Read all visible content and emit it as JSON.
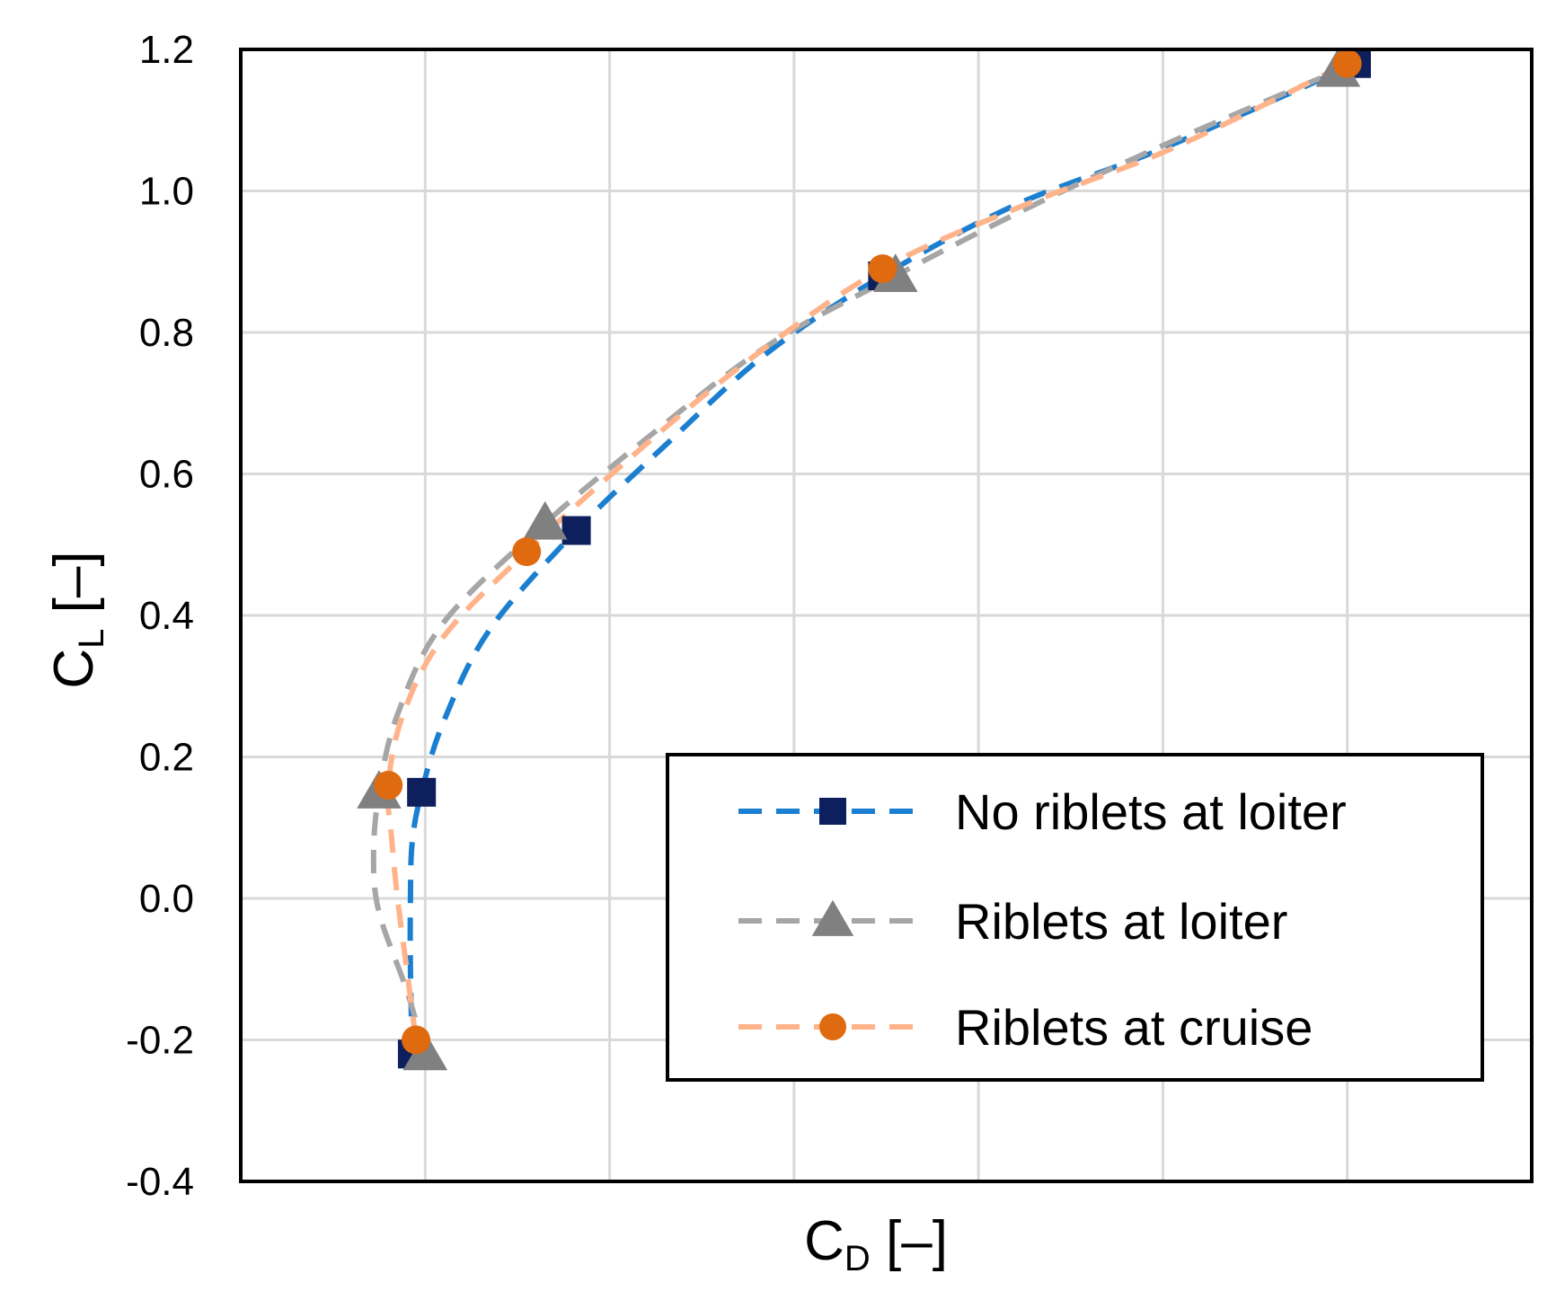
{
  "chart_data": {
    "type": "line",
    "title": "",
    "xlabel": {
      "main": "C",
      "sub": "D",
      "unit": "[–]"
    },
    "ylabel": {
      "main": "C",
      "sub": "L",
      "unit": "[–]"
    },
    "xlim": [
      0,
      7
    ],
    "ylim": [
      -0.4,
      1.2
    ],
    "yticks": [
      "1.2",
      "1.0",
      "0.8",
      "0.6",
      "0.4",
      "0.2",
      "0.0",
      "-0.2",
      "-0.4"
    ],
    "x_tick_labels_shown": false,
    "grid": true,
    "legend_position": "bottom-right",
    "series": [
      {
        "name": "No riblets at loiter",
        "marker": "square",
        "line_color": "#1a7fd1",
        "marker_color": "#0d1f5c",
        "points": [
          [
            0.93,
            -0.22
          ],
          [
            0.98,
            0.15
          ],
          [
            1.82,
            0.52
          ],
          [
            3.48,
            0.88
          ],
          [
            6.05,
            1.18
          ]
        ],
        "curve": [
          [
            0.93,
            -0.22
          ],
          [
            0.92,
            -0.1
          ],
          [
            0.92,
            0.0
          ],
          [
            0.93,
            0.08
          ],
          [
            0.98,
            0.15
          ],
          [
            1.1,
            0.25
          ],
          [
            1.35,
            0.38
          ],
          [
            1.82,
            0.52
          ],
          [
            2.3,
            0.64
          ],
          [
            2.85,
            0.77
          ],
          [
            3.48,
            0.88
          ],
          [
            4.2,
            0.98
          ],
          [
            5.0,
            1.06
          ],
          [
            6.05,
            1.18
          ]
        ]
      },
      {
        "name": "Riblets at loiter",
        "marker": "triangle",
        "line_color": "#a6a6a6",
        "marker_color": "#808080",
        "points": [
          [
            1.0,
            -0.22
          ],
          [
            0.75,
            0.15
          ],
          [
            1.65,
            0.53
          ],
          [
            3.55,
            0.88
          ],
          [
            5.95,
            1.17
          ]
        ],
        "curve": [
          [
            1.0,
            -0.22
          ],
          [
            0.9,
            -0.13
          ],
          [
            0.75,
            -0.02
          ],
          [
            0.72,
            0.06
          ],
          [
            0.75,
            0.15
          ],
          [
            0.85,
            0.26
          ],
          [
            1.1,
            0.39
          ],
          [
            1.65,
            0.53
          ],
          [
            2.2,
            0.65
          ],
          [
            2.85,
            0.78
          ],
          [
            3.55,
            0.88
          ],
          [
            4.3,
            0.98
          ],
          [
            5.05,
            1.07
          ],
          [
            5.95,
            1.17
          ]
        ]
      },
      {
        "name": "Riblets at cruise",
        "marker": "circle",
        "line_color": "#ffb38a",
        "marker_color": "#e06a10",
        "points": [
          [
            0.95,
            -0.2
          ],
          [
            0.8,
            0.16
          ],
          [
            1.55,
            0.49
          ],
          [
            3.48,
            0.89
          ],
          [
            6.0,
            1.18
          ]
        ],
        "curve": [
          [
            0.95,
            -0.2
          ],
          [
            0.9,
            -0.1
          ],
          [
            0.85,
            0.0
          ],
          [
            0.82,
            0.08
          ],
          [
            0.8,
            0.16
          ],
          [
            0.88,
            0.26
          ],
          [
            1.1,
            0.37
          ],
          [
            1.55,
            0.49
          ],
          [
            2.1,
            0.62
          ],
          [
            2.75,
            0.76
          ],
          [
            3.48,
            0.89
          ],
          [
            4.25,
            0.98
          ],
          [
            5.05,
            1.06
          ],
          [
            6.0,
            1.18
          ]
        ]
      }
    ]
  }
}
